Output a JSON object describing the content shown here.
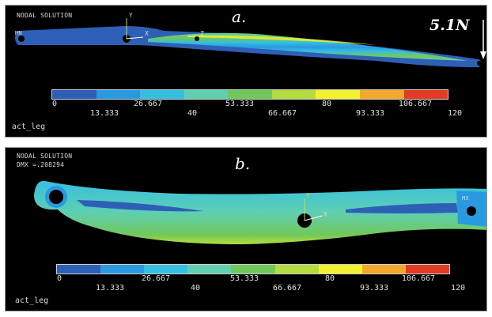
{
  "panel_a": {
    "header": "NODAL SOLUTION",
    "caption": "a.",
    "force_label": "5.1N",
    "mn_marker": "MN",
    "axis_y": "Y",
    "axis_x": "X",
    "axis_z": "Z",
    "jobname": "act_leg",
    "legend_top": [
      "0",
      "26.667",
      "53.333",
      "80",
      "106.667"
    ],
    "legend_bottom": [
      "13.333",
      "40",
      "66.667",
      "93.333",
      "120"
    ]
  },
  "panel_b": {
    "header": "NODAL SOLUTION",
    "dmx": "DMX =.208294",
    "caption": "b.",
    "mx_marker": "MX",
    "axis_y": "Y",
    "axis_x": "X",
    "jobname": "act_leg",
    "legend_top": [
      "0",
      "26.667",
      "53.333",
      "80",
      "106.667"
    ],
    "legend_bottom": [
      "13.333",
      "40",
      "66.667",
      "93.333",
      "120"
    ]
  },
  "legend_colors": [
    "#2e5fb6",
    "#2a9ae0",
    "#35bfe0",
    "#5fcfb2",
    "#71c85a",
    "#b4dc3e",
    "#f3f230",
    "#f2a82a",
    "#e23a25"
  ],
  "chart_data": {
    "type": "heatmap",
    "contour_levels": [
      0,
      13.333,
      26.667,
      40,
      53.333,
      66.667,
      80,
      93.333,
      106.667,
      120
    ],
    "applied_load": "5.1N"
  }
}
